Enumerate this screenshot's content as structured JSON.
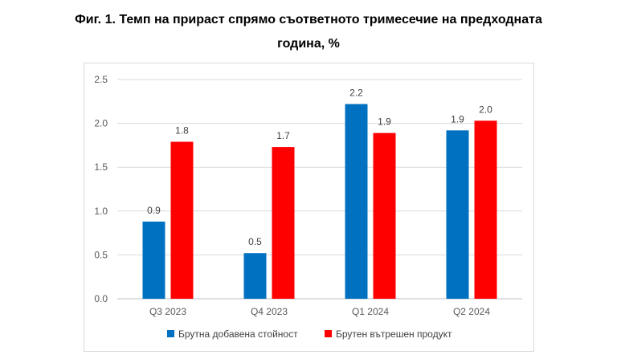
{
  "title_line1": "Фиг. 1. Темп на прираст спрямо съответното тримесечие на предходната",
  "title_line2": "година, %",
  "colors": {
    "series1": "#0070C0",
    "series2": "#FF0000",
    "grid": "#d9d9d9",
    "axis": "#bfbfbf"
  },
  "chart_data": {
    "type": "bar",
    "title": "Фиг. 1. Темп на прираст спрямо съответното тримесечие на предходната година, %",
    "categories": [
      "Q3 2023",
      "Q4 2023",
      "Q1 2024",
      "Q2 2024"
    ],
    "series": [
      {
        "name": "Брутна добавена стойност",
        "values": [
          0.88,
          0.52,
          2.22,
          1.92
        ],
        "labels": [
          "0.9",
          "0.5",
          "2.2",
          "1.9"
        ],
        "color": "#0070C0"
      },
      {
        "name": "Брутен вътрешен продукт",
        "values": [
          1.79,
          1.73,
          1.89,
          2.03
        ],
        "labels": [
          "1.8",
          "1.7",
          "1.9",
          "2.0"
        ],
        "color": "#FF0000"
      }
    ],
    "ylim": [
      0,
      2.5
    ],
    "yticks": [
      "0.0",
      "0.5",
      "1.0",
      "1.5",
      "2.0",
      "2.5"
    ],
    "grid": true,
    "legend": "bottom"
  }
}
